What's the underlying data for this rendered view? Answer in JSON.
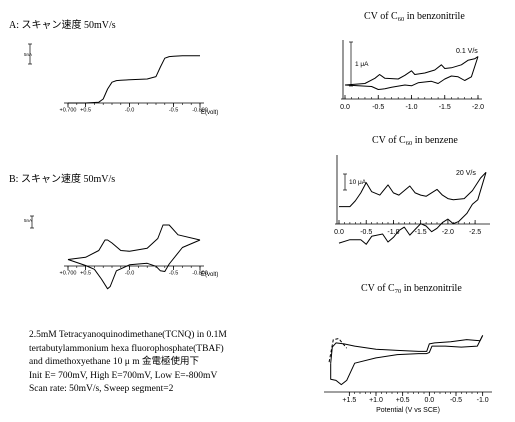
{
  "left_panel": {
    "a_label": "A: スキャン速度 50mV/s",
    "b_label": "B: スキャン速度 50mV/s",
    "notes": [
      "2.5mM Tetracyanoquinodimethane(TCNQ) in 0.1M",
      " tertabutylammonium hexa fluorophosphate(TBAF)",
      "and dimethoxyethane 10 μ m 金電極使用下",
      "Init E= 700mV, High E=700mV, Low E=-800mV",
      "Scan rate: 50mV/s, Sweep segment=2"
    ]
  },
  "right_panel": {
    "c60_benzonitrile": {
      "title_prefix": "CV of C",
      "title_sub": "60",
      "title_suffix": " in benzonitrile"
    },
    "c60_benzene": {
      "title_prefix": "CV of C",
      "title_sub": "60",
      "title_suffix": " in benzene"
    },
    "c70_benzonitrile": {
      "title_prefix": "CV of C",
      "title_sub": "70",
      "title_suffix": " in benzonitrile"
    }
  },
  "chart_data": [
    {
      "id": "A",
      "type": "line",
      "title": "A: スキャン速度 50mV/s",
      "xlabel": "E(volt)",
      "xlim": [
        0.7,
        -0.8
      ],
      "x_ticks": [
        "+0.700",
        "+0.5",
        "-0.0",
        "-0.5",
        "-0.800"
      ],
      "x_tick_values": [
        0.7,
        0.5,
        0.0,
        -0.5,
        -0.8
      ],
      "scale_bar_label": "5nA",
      "ylim": [
        0,
        12
      ],
      "series": [
        {
          "x": [
            0.7,
            0.5,
            0.35,
            0.3,
            0.25,
            0.2,
            0.15,
            0.1,
            0.0,
            -0.2,
            -0.3,
            -0.35,
            -0.4,
            -0.45,
            -0.5,
            -0.6,
            -0.8
          ],
          "y": [
            0.0,
            0.0,
            0.2,
            1.0,
            3.5,
            5.2,
            5.6,
            5.7,
            5.8,
            6.0,
            6.6,
            9.0,
            11.2,
            11.6,
            11.7,
            11.8,
            11.8
          ]
        }
      ]
    },
    {
      "id": "B",
      "type": "line",
      "title": "B: スキャン速度 50mV/s",
      "xlabel": "E(volt)",
      "xlim": [
        0.7,
        -0.8
      ],
      "x_ticks": [
        "+0.700",
        "+0.5",
        "-0.0",
        "-0.5",
        "-0.800"
      ],
      "x_tick_values": [
        0.7,
        0.5,
        0.0,
        -0.5,
        -0.8
      ],
      "scale_bar_label": "5nA",
      "ylim": [
        -5,
        5
      ],
      "series": [
        {
          "x": [
            0.7,
            0.5,
            0.35,
            0.28,
            0.25,
            0.2,
            0.1,
            0.0,
            -0.2,
            -0.32,
            -0.38,
            -0.45,
            -0.55,
            -0.8
          ],
          "y": [
            0.0,
            0.3,
            1.2,
            2.6,
            2.6,
            2.2,
            1.2,
            1.1,
            1.5,
            2.8,
            4.6,
            4.6,
            3.3,
            2.6
          ]
        },
        {
          "x": [
            -0.8,
            -0.6,
            -0.45,
            -0.4,
            -0.35,
            -0.3,
            -0.2,
            0.0,
            0.15,
            0.22,
            0.25,
            0.32,
            0.4,
            0.5,
            0.6,
            0.7
          ],
          "y": [
            2.6,
            1.6,
            -0.6,
            -1.6,
            -1.5,
            -0.9,
            -0.5,
            -0.7,
            -1.5,
            -3.6,
            -3.9,
            -2.6,
            -1.3,
            -0.8,
            -0.4,
            0.0
          ]
        }
      ]
    },
    {
      "id": "C60-benzonitrile",
      "type": "line",
      "title": "CV of C60 in benzonitrile",
      "annotation": "0.1 V/s",
      "scale_bar_label": "1 μA",
      "xlim": [
        0.0,
        -2.0
      ],
      "x_ticks": [
        "0.0",
        "-0.5",
        "-1.0",
        "-1.5",
        "-2.0"
      ],
      "x_tick_values": [
        0.0,
        -0.5,
        -1.0,
        -1.5,
        -2.0
      ],
      "ylim": [
        -2.5,
        3.5
      ],
      "series": [
        {
          "x": [
            0.0,
            -0.3,
            -0.45,
            -0.52,
            -0.6,
            -0.8,
            -0.9,
            -1.0,
            -1.05,
            -1.2,
            -1.35,
            -1.45,
            -1.5,
            -1.6,
            -1.75,
            -1.85,
            -1.95,
            -2.0
          ],
          "y": [
            -0.5,
            -0.3,
            0.4,
            0.9,
            0.4,
            0.3,
            0.8,
            1.4,
            0.9,
            1.1,
            1.5,
            2.2,
            1.7,
            1.8,
            2.2,
            2.8,
            3.0,
            3.3
          ]
        },
        {
          "x": [
            -2.0,
            -1.9,
            -1.8,
            -1.7,
            -1.6,
            -1.5,
            -1.4,
            -1.3,
            -1.1,
            -1.0,
            -0.9,
            -0.7,
            -0.6,
            -0.5,
            -0.4,
            -0.2,
            0.0
          ],
          "y": [
            3.3,
            0.6,
            0.1,
            0.6,
            0.7,
            0.3,
            -0.3,
            0.0,
            -0.2,
            -0.6,
            -0.5,
            -0.8,
            -1.0,
            -1.1,
            -0.7,
            -0.6,
            -0.5
          ]
        }
      ]
    },
    {
      "id": "C60-benzene",
      "type": "line",
      "title": "CV of C60 in benzene",
      "annotation": "20 V/s",
      "scale_bar_label": "10 μA",
      "xlim": [
        0.0,
        -2.7
      ],
      "x_ticks": [
        "0.0",
        "-0.5",
        "-1.0",
        "-1.5",
        "-2.0",
        "-2.5"
      ],
      "x_tick_values": [
        0.0,
        -0.5,
        -1.0,
        -1.5,
        -2.0,
        -2.5
      ],
      "ylim": [
        -3.5,
        3.5
      ],
      "series": [
        {
          "x": [
            0.0,
            -0.2,
            -0.3,
            -0.4,
            -0.5,
            -0.6,
            -0.75,
            -0.9,
            -1.0,
            -1.1,
            -1.3,
            -1.4,
            -1.5,
            -1.6,
            -1.8,
            -1.9,
            -2.0,
            -2.1,
            -2.3,
            -2.45,
            -2.6,
            -2.7
          ],
          "y": [
            0.3,
            0.3,
            0.8,
            1.5,
            2.4,
            1.6,
            1.3,
            2.2,
            1.5,
            1.3,
            2.1,
            1.5,
            1.3,
            1.2,
            1.8,
            1.3,
            1.0,
            0.9,
            1.0,
            1.7,
            2.8,
            3.3
          ]
        },
        {
          "x": [
            -2.7,
            -2.55,
            -2.45,
            -2.35,
            -2.2,
            -2.1,
            -2.0,
            -1.9,
            -1.8,
            -1.7,
            -1.6,
            -1.5,
            -1.4,
            -1.3,
            -1.2,
            -1.1,
            -1.0,
            -0.9,
            -0.8,
            -0.6,
            -0.5,
            -0.4,
            -0.2,
            0.0
          ],
          "y": [
            3.3,
            0.9,
            0.5,
            -0.3,
            -1.0,
            -1.2,
            -0.8,
            -1.1,
            -1.6,
            -1.9,
            -1.4,
            -1.2,
            -1.7,
            -2.2,
            -1.5,
            -1.8,
            -2.4,
            -2.8,
            -2.1,
            -2.3,
            -3.0,
            -2.6,
            -2.6,
            -2.9
          ]
        }
      ]
    },
    {
      "id": "C70-benzonitrile",
      "type": "line",
      "title": "CV of C70 in benzonitrile",
      "xlabel": "Potential (V vs SCE)",
      "xlim": [
        1.9,
        -1.1
      ],
      "x_ticks": [
        "+1.5",
        "+1.0",
        "+0.5",
        "0.0",
        "-0.5",
        "-1.0"
      ],
      "x_tick_values": [
        1.5,
        1.0,
        0.5,
        0.0,
        -0.5,
        -1.0
      ],
      "ylim": [
        -3.5,
        3.5
      ],
      "series": [
        {
          "x": [
            -1.0,
            -0.9,
            -0.6,
            -0.3,
            -0.05,
            0.0,
            0.05,
            0.2,
            0.6,
            1.0,
            1.4,
            1.55,
            1.65,
            1.75,
            1.85,
            1.85
          ],
          "y": [
            1.6,
            0.6,
            0.5,
            0.6,
            0.6,
            0.0,
            -0.1,
            -0.1,
            -0.2,
            -0.5,
            -1.0,
            -2.6,
            -3.0,
            -2.6,
            -2.5,
            -1.0
          ]
        },
        {
          "x": [
            1.85,
            1.82,
            1.75,
            1.6,
            1.4,
            1.0,
            0.6,
            0.2,
            0.05,
            0.0,
            -0.1,
            -0.4,
            -0.7,
            -0.95,
            -1.0
          ],
          "y": [
            -1.0,
            0.5,
            0.9,
            0.8,
            0.6,
            0.3,
            0.2,
            0.1,
            0.1,
            0.8,
            0.9,
            1.0,
            1.2,
            1.1,
            1.6
          ]
        },
        {
          "x": [
            1.88,
            1.8,
            1.7,
            1.55
          ],
          "y": [
            -0.9,
            1.2,
            1.3,
            0.4
          ],
          "style": "dashed"
        }
      ]
    }
  ]
}
